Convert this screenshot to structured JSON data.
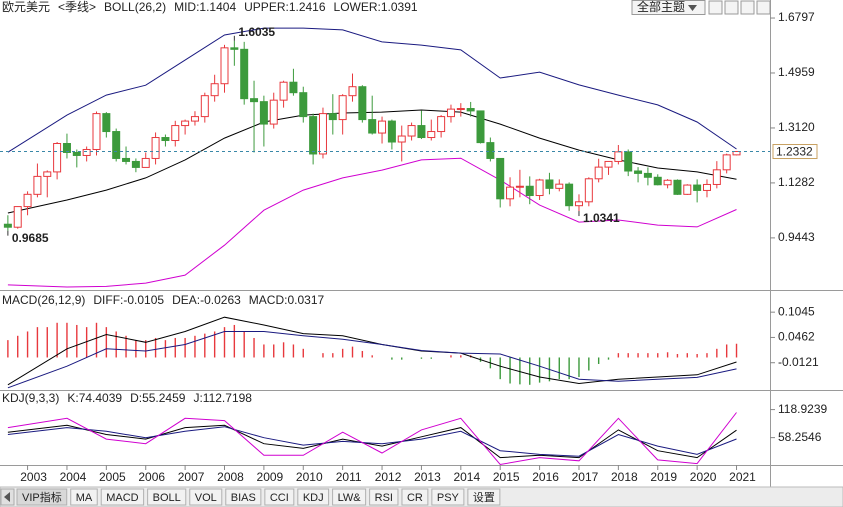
{
  "chart_data": [
    {
      "type": "candlestick",
      "title": "欧元美元",
      "period": "<季线>",
      "indicator": "BOLL(26,2)",
      "x": [
        2002.5,
        2002.75,
        2003,
        2003.25,
        2003.5,
        2003.75,
        2004,
        2004.25,
        2004.5,
        2004.75,
        2005,
        2005.25,
        2005.5,
        2005.75,
        2006,
        2006.25,
        2006.5,
        2006.75,
        2007,
        2007.25,
        2007.5,
        2007.75,
        2008,
        2008.25,
        2008.5,
        2008.75,
        2009,
        2009.25,
        2009.5,
        2009.75,
        2010,
        2010.25,
        2010.5,
        2010.75,
        2011,
        2011.25,
        2011.5,
        2011.75,
        2012,
        2012.25,
        2012.5,
        2012.75,
        2013,
        2013.25,
        2013.5,
        2013.75,
        2014,
        2014.25,
        2014.5,
        2014.75,
        2015,
        2015.25,
        2015.5,
        2015.75,
        2016,
        2016.25,
        2016.5,
        2016.75,
        2017,
        2017.25,
        2017.5,
        2017.75,
        2018,
        2018.25,
        2018.5,
        2018.75,
        2019,
        2019.25,
        2019.5,
        2019.75,
        2020,
        2020.25,
        2020.5,
        2020.75,
        2021
      ],
      "open": [
        0.99,
        0.98,
        1.049,
        1.09,
        1.15,
        1.165,
        1.26,
        1.23,
        1.22,
        1.24,
        1.36,
        1.3,
        1.21,
        1.2,
        1.18,
        1.21,
        1.28,
        1.27,
        1.32,
        1.335,
        1.35,
        1.42,
        1.46,
        1.58,
        1.575,
        1.41,
        1.4,
        1.325,
        1.405,
        1.465,
        1.43,
        1.35,
        1.225,
        1.36,
        1.34,
        1.42,
        1.45,
        1.34,
        1.295,
        1.335,
        1.265,
        1.285,
        1.32,
        1.28,
        1.3,
        1.35,
        1.375,
        1.377,
        1.369,
        1.263,
        1.21,
        1.075,
        1.114,
        1.117,
        1.086,
        1.138,
        1.11,
        1.124,
        1.052,
        1.065,
        1.142,
        1.181,
        1.2,
        1.232,
        1.168,
        1.16,
        1.147,
        1.122,
        1.137,
        1.09,
        1.121,
        1.103,
        1.123,
        1.172,
        1.222
      ],
      "high": [
        1.02,
        1.05,
        1.1,
        1.193,
        1.17,
        1.265,
        1.293,
        1.24,
        1.25,
        1.367,
        1.365,
        1.31,
        1.25,
        1.21,
        1.23,
        1.297,
        1.29,
        1.336,
        1.34,
        1.368,
        1.43,
        1.49,
        1.59,
        1.6035,
        1.6,
        1.47,
        1.42,
        1.43,
        1.47,
        1.51,
        1.45,
        1.36,
        1.38,
        1.425,
        1.425,
        1.494,
        1.455,
        1.42,
        1.35,
        1.34,
        1.32,
        1.33,
        1.37,
        1.34,
        1.355,
        1.39,
        1.395,
        1.399,
        1.37,
        1.28,
        1.21,
        1.147,
        1.172,
        1.15,
        1.142,
        1.162,
        1.14,
        1.13,
        1.09,
        1.147,
        1.209,
        1.2,
        1.255,
        1.24,
        1.181,
        1.18,
        1.157,
        1.141,
        1.14,
        1.124,
        1.14,
        1.14,
        1.201,
        1.226,
        1.235
      ],
      "low": [
        0.9685,
        0.975,
        1.02,
        1.08,
        1.08,
        1.14,
        1.21,
        1.18,
        1.2,
        1.22,
        1.28,
        1.2,
        1.19,
        1.164,
        1.18,
        1.19,
        1.25,
        1.25,
        1.29,
        1.32,
        1.33,
        1.4,
        1.43,
        1.52,
        1.39,
        1.23,
        1.25,
        1.31,
        1.38,
        1.42,
        1.33,
        1.19,
        1.21,
        1.29,
        1.29,
        1.4,
        1.33,
        1.29,
        1.26,
        1.24,
        1.2,
        1.27,
        1.275,
        1.27,
        1.28,
        1.33,
        1.35,
        1.35,
        1.26,
        1.2,
        1.046,
        1.05,
        1.08,
        1.057,
        1.071,
        1.09,
        1.1,
        1.035,
        1.0341,
        1.05,
        1.13,
        1.155,
        1.19,
        1.151,
        1.13,
        1.12,
        1.12,
        1.11,
        1.088,
        1.088,
        1.063,
        1.08,
        1.11,
        1.16,
        1.22
      ],
      "close": [
        0.98,
        1.049,
        1.09,
        1.15,
        1.165,
        1.26,
        1.23,
        1.22,
        1.24,
        1.36,
        1.3,
        1.21,
        1.2,
        1.18,
        1.21,
        1.28,
        1.27,
        1.32,
        1.335,
        1.35,
        1.42,
        1.46,
        1.58,
        1.575,
        1.41,
        1.4,
        1.325,
        1.405,
        1.465,
        1.43,
        1.35,
        1.225,
        1.36,
        1.34,
        1.42,
        1.45,
        1.34,
        1.295,
        1.335,
        1.265,
        1.285,
        1.32,
        1.28,
        1.3,
        1.35,
        1.375,
        1.377,
        1.369,
        1.263,
        1.21,
        1.075,
        1.114,
        1.117,
        1.086,
        1.138,
        1.11,
        1.124,
        1.052,
        1.065,
        1.142,
        1.181,
        1.2,
        1.232,
        1.168,
        1.16,
        1.147,
        1.122,
        1.137,
        1.09,
        1.121,
        1.103,
        1.123,
        1.172,
        1.222,
        1.2332
      ],
      "up_color": "#e8383d",
      "down_color": "#3c9a3c",
      "line_x": [
        2002.5,
        2004,
        2005,
        2006,
        2007,
        2008,
        2009,
        2010,
        2011,
        2012,
        2013,
        2014,
        2015,
        2016,
        2017,
        2018,
        2019,
        2020,
        2021
      ],
      "lines": [
        {
          "label": "MID:1.1404",
          "color": "#000000",
          "values": [
            1.0275,
            1.071,
            1.104,
            1.145,
            1.205,
            1.278,
            1.332,
            1.355,
            1.362,
            1.365,
            1.372,
            1.365,
            1.325,
            1.278,
            1.238,
            1.205,
            1.178,
            1.165,
            1.1404
          ]
        },
        {
          "label": "UPPER:1.2416",
          "color": "#1a1a80",
          "values": [
            1.231,
            1.355,
            1.422,
            1.455,
            1.539,
            1.623,
            1.646,
            1.646,
            1.64,
            1.6,
            1.589,
            1.573,
            1.479,
            1.499,
            1.456,
            1.422,
            1.389,
            1.332,
            1.2416
          ]
        },
        {
          "label": "LOWER:1.0391",
          "color": "#d000d0",
          "values": [
            0.787,
            0.78,
            0.782,
            0.793,
            0.82,
            0.92,
            1.037,
            1.104,
            1.145,
            1.171,
            1.205,
            1.211,
            1.138,
            1.054,
            0.997,
            1.004,
            0.987,
            0.981,
            1.0391
          ]
        }
      ],
      "last_price": 1.2332,
      "last_price_color": "#3a88a8",
      "annotations": [
        {
          "x": 2008.25,
          "value": 1.6035,
          "color": "#e8383d"
        },
        {
          "x": 2002.5,
          "value": 0.9685,
          "color": "#5a9a4a"
        },
        {
          "x": 2017,
          "value": 1.0341,
          "color": "#5a9a4a"
        }
      ],
      "xlim": [
        2002.3,
        2021.85
      ],
      "ylim": [
        0.77,
        1.74
      ],
      "xticks": [
        2003,
        2004,
        2005,
        2006,
        2007,
        2008,
        2009,
        2010,
        2011,
        2012,
        2013,
        2014,
        2015,
        2016,
        2017,
        2018,
        2019,
        2020,
        2021
      ],
      "yticks": [
        1.6797,
        1.4959,
        {
          "value": 1.312,
          "label": "1.3120"
        },
        1.1282,
        0.9443
      ]
    },
    {
      "type": "macd",
      "indicator": "MACD(26,12,9)",
      "lines": [
        {
          "label": "DIFF:-0.0105",
          "color": "#000000",
          "values": [
            -0.063,
            0.02,
            0.053,
            0.035,
            0.06,
            0.093,
            0.075,
            0.055,
            0.05,
            0.03,
            0.015,
            0.01,
            -0.02,
            -0.045,
            -0.06,
            -0.05,
            -0.045,
            -0.04,
            -0.0105
          ]
        },
        {
          "label": "DEA:-0.0263",
          "color": "#1a1a80",
          "values": [
            -0.07,
            -0.02,
            0.02,
            0.015,
            0.03,
            0.06,
            0.06,
            0.05,
            0.042,
            0.03,
            0.016,
            0.01,
            0.008,
            -0.02,
            -0.05,
            -0.055,
            -0.05,
            -0.046,
            -0.0263
          ]
        }
      ],
      "bars": {
        "label": "MACD:0.0317",
        "label_color": "#d000d0",
        "up_color": "#e8383d",
        "down_color": "#3c9a3c",
        "values": [
          0.04,
          0.05,
          0.06,
          0.07,
          0.07,
          0.08,
          0.08,
          0.075,
          0.07,
          0.08,
          0.07,
          0.06,
          0.05,
          0.04,
          0.04,
          0.045,
          0.04,
          0.045,
          0.045,
          0.05,
          0.055,
          0.06,
          0.07,
          0.075,
          0.06,
          0.045,
          0.03,
          0.03,
          0.035,
          0.03,
          0.02,
          0,
          0.01,
          0.01,
          0.02,
          0.025,
          0.015,
          0.005,
          0,
          -0.005,
          -0.005,
          0,
          -0.003,
          -0.003,
          0,
          0.005,
          0.005,
          0.005,
          -0.01,
          -0.025,
          -0.05,
          -0.06,
          -0.062,
          -0.063,
          -0.058,
          -0.055,
          -0.05,
          -0.05,
          -0.045,
          -0.03,
          -0.015,
          -0.005,
          0.01,
          0.01,
          0.01,
          0.01,
          0.01,
          0.012,
          0.008,
          0.01,
          0.008,
          0.01,
          0.02,
          0.03,
          0.0317
        ]
      },
      "ylim": [
        -0.075,
        0.151
      ],
      "yticks": [
        0.1045,
        0.0462,
        -0.0121
      ]
    },
    {
      "type": "kdj",
      "indicator": "KDJ(9,3,3)",
      "lines": [
        {
          "label": "K:74.4039",
          "color": "#000000",
          "values": [
            70,
            85,
            65,
            55,
            80,
            85,
            45,
            35,
            55,
            40,
            60,
            80,
            15,
            20,
            15,
            75,
            30,
            15,
            74.4039
          ]
        },
        {
          "label": "D:55.2459",
          "color": "#1a1a80",
          "values": [
            65,
            80,
            72,
            58,
            72,
            82,
            58,
            42,
            50,
            45,
            55,
            72,
            30,
            22,
            18,
            65,
            40,
            22,
            55.2459
          ]
        },
        {
          "label": "J:112.7198",
          "color": "#d000d0",
          "values": [
            80,
            100,
            55,
            45,
            100,
            95,
            20,
            20,
            70,
            25,
            75,
            100,
            0,
            15,
            8,
            100,
            10,
            2,
            112.7198
          ]
        }
      ],
      "ylim": [
        -1,
        157
      ],
      "yticks": [
        118.9239,
        58.2546
      ]
    }
  ],
  "ui": {
    "theme_button": "全部主题",
    "tabs": [
      "VIP指标",
      "MA",
      "MACD",
      "BOLL",
      "VOL",
      "BIAS",
      "CCI",
      "KDJ",
      "LW&",
      "RSI",
      "CR",
      "PSY",
      "设置"
    ]
  }
}
